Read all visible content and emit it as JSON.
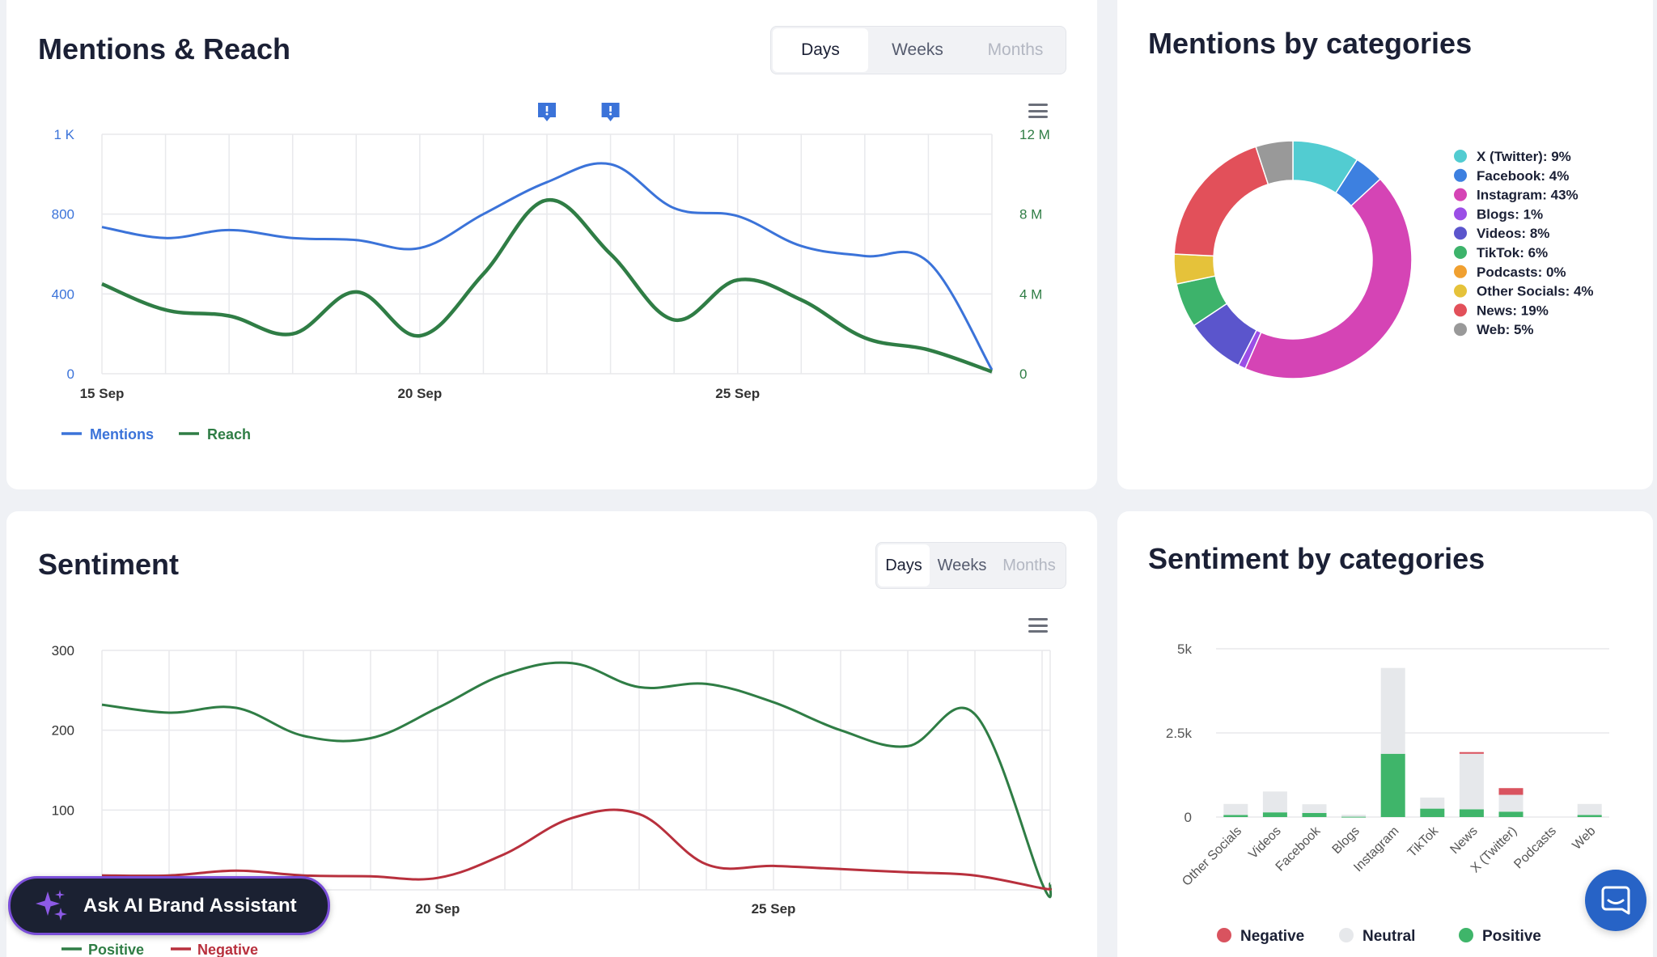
{
  "colors": {
    "mentions": "#3b73d9",
    "reach": "#2f7d45",
    "positive": "#2f7d45",
    "negative": "#b8303d",
    "neutral": "#e6e8eb",
    "positive_bar": "#3fb56a",
    "negative_bar": "#d9535f",
    "ai_border": "#7a4ed8",
    "chat": "#2763c6"
  },
  "mentions_reach": {
    "title": "Mentions & Reach",
    "tabs": [
      {
        "label": "Days",
        "state": "active"
      },
      {
        "label": "Weeks",
        "state": "normal"
      },
      {
        "label": "Months",
        "state": "disabled"
      }
    ],
    "menu_icon": "hamburger-menu-icon",
    "annotation_icon": "exclamation-flag-icon"
  },
  "mentions_by_categories": {
    "title": "Mentions by categories"
  },
  "sentiment": {
    "title": "Sentiment",
    "tabs": [
      {
        "label": "Days",
        "state": "active"
      },
      {
        "label": "Weeks",
        "state": "normal"
      },
      {
        "label": "Months",
        "state": "disabled"
      }
    ],
    "menu_icon": "hamburger-menu-icon"
  },
  "sentiment_by_categories": {
    "title": "Sentiment by categories"
  },
  "ai_assistant": {
    "label": "Ask AI Brand Assistant",
    "icon": "sparkles-icon"
  },
  "chat_widget": {
    "icon": "chat-bubble-icon"
  },
  "chart_data": [
    {
      "id": "mentions_reach",
      "type": "line",
      "x_start_day": 15,
      "x_month": "Sep",
      "x_tick_labels": [
        {
          "day": 15,
          "label": "15 Sep"
        },
        {
          "day": 20,
          "label": "20 Sep"
        },
        {
          "day": 25,
          "label": "25 Sep"
        }
      ],
      "left_axis": {
        "min": 0,
        "max": 1200,
        "ticks": [
          0,
          400,
          800,
          1200
        ],
        "tick_labels": [
          "0",
          "400",
          "800",
          "1 K"
        ]
      },
      "right_axis": {
        "min": 0,
        "max": 12000000,
        "ticks": [
          0,
          4000000,
          8000000,
          12000000
        ],
        "tick_labels": [
          "0",
          "4 M",
          "8 M",
          "12 M"
        ]
      },
      "series": [
        {
          "name": "Mentions",
          "axis": "left",
          "color": "#3b73d9",
          "x": [
            15,
            16,
            17,
            18,
            19,
            20,
            21,
            22,
            23,
            24,
            25,
            26,
            27,
            28,
            29
          ],
          "values": [
            735,
            680,
            720,
            680,
            670,
            630,
            800,
            960,
            1050,
            830,
            790,
            640,
            590,
            560,
            20
          ]
        },
        {
          "name": "Reach",
          "axis": "right",
          "color": "#2f7d45",
          "x": [
            15,
            16,
            17,
            18,
            19,
            20,
            21,
            22,
            23,
            24,
            25,
            26,
            27,
            28,
            29
          ],
          "values": [
            4500000,
            3200000,
            2900000,
            2000000,
            4100000,
            1900000,
            5000000,
            8700000,
            6000000,
            2700000,
            4700000,
            3700000,
            1800000,
            1200000,
            100000
          ]
        }
      ],
      "annotations": [
        {
          "x": 22
        },
        {
          "x": 23
        }
      ],
      "legend": "bottom-left",
      "grid": true
    },
    {
      "id": "mentions_by_categories",
      "type": "pie",
      "donut": true,
      "legend": "right",
      "slices": [
        {
          "name": "X (Twitter)",
          "label": "X (Twitter): 9%",
          "value": 9,
          "color": "#52ccd1"
        },
        {
          "name": "Facebook",
          "label": "Facebook: 4%",
          "value": 4,
          "color": "#3d80e0"
        },
        {
          "name": "Instagram",
          "label": "Instagram: 43%",
          "value": 43,
          "color": "#d544b5"
        },
        {
          "name": "Blogs",
          "label": "Blogs: 1%",
          "value": 1,
          "color": "#9b4fe6"
        },
        {
          "name": "Videos",
          "label": "Videos: 8%",
          "value": 8,
          "color": "#5b55cc"
        },
        {
          "name": "TikTok",
          "label": "TikTok: 6%",
          "value": 6,
          "color": "#3db36b"
        },
        {
          "name": "Podcasts",
          "label": "Podcasts: 0%",
          "value": 0,
          "color": "#f0a030"
        },
        {
          "name": "Other Socials",
          "label": "Other Socials: 4%",
          "value": 4,
          "color": "#e5c23a"
        },
        {
          "name": "News",
          "label": "News: 19%",
          "value": 19,
          "color": "#e2505a"
        },
        {
          "name": "Web",
          "label": "Web: 5%",
          "value": 5,
          "color": "#999999"
        }
      ]
    },
    {
      "id": "sentiment",
      "type": "line",
      "x_start_day": 15,
      "x_month": "Sep",
      "x_tick_labels": [
        {
          "day": 20,
          "label": "20 Sep"
        },
        {
          "day": 25,
          "label": "25 Sep"
        }
      ],
      "y_axis": {
        "min": 0,
        "max": 300,
        "ticks": [
          0,
          100,
          200,
          300
        ],
        "tick_labels": [
          "",
          "100",
          "200",
          "300"
        ]
      },
      "series": [
        {
          "name": "Positive",
          "color": "#2f7d45",
          "x": [
            15,
            16,
            17,
            18,
            19,
            20,
            21,
            22,
            23,
            24,
            25,
            26,
            27,
            28,
            29,
            29.5
          ],
          "values": [
            232,
            222,
            228,
            193,
            190,
            228,
            270,
            284,
            254,
            258,
            235,
            200,
            180,
            220,
            8,
            8
          ]
        },
        {
          "name": "Negative",
          "color": "#b8303d",
          "x": [
            15,
            16,
            17,
            18,
            19,
            20,
            21,
            22,
            23,
            24,
            25,
            26,
            27,
            28,
            29,
            29.5
          ],
          "values": [
            18,
            18,
            24,
            18,
            17,
            15,
            45,
            90,
            95,
            32,
            30,
            26,
            22,
            18,
            2,
            2
          ]
        }
      ],
      "legend": "bottom-left",
      "grid": true
    },
    {
      "id": "sentiment_by_categories",
      "type": "bar",
      "stacked": true,
      "categories": [
        "Other Socials",
        "Videos",
        "Facebook",
        "Blogs",
        "Instagram",
        "TikTok",
        "News",
        "X (Twitter)",
        "Podcasts",
        "Web"
      ],
      "y_axis": {
        "min": 0,
        "max": 5000,
        "ticks": [
          0,
          2500,
          5000
        ],
        "tick_labels": [
          "0",
          "2.5k",
          "5k"
        ]
      },
      "series": [
        {
          "name": "Negative",
          "color": "#d9535f",
          "values": [
            0,
            0,
            0,
            0,
            0,
            0,
            50,
            200,
            0,
            0
          ]
        },
        {
          "name": "Neutral",
          "color": "#e6e8eb",
          "values": [
            330,
            620,
            260,
            60,
            2550,
            330,
            1650,
            500,
            0,
            330
          ]
        },
        {
          "name": "Positive",
          "color": "#3fb56a",
          "values": [
            60,
            140,
            120,
            10,
            1880,
            250,
            230,
            160,
            0,
            60
          ]
        }
      ],
      "legend": "bottom-center",
      "grid": true
    }
  ]
}
